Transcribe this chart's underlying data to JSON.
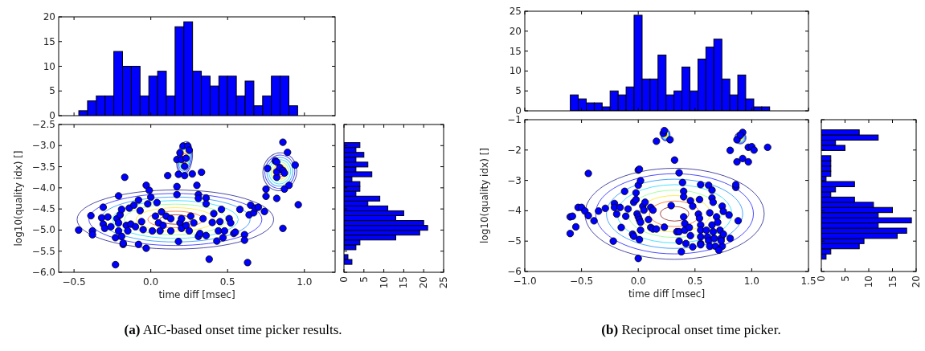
{
  "chart_data": [
    {
      "type": "histogram",
      "bins": [
        -0.469,
        -0.412,
        -0.355,
        -0.298,
        -0.241,
        -0.184,
        -0.127,
        -0.07,
        -0.013,
        0.044,
        0.101,
        0.158,
        0.215,
        0.272,
        0.329,
        0.386,
        0.443,
        0.5,
        0.557,
        0.614,
        0.671,
        0.728,
        0.785,
        0.842,
        0.899,
        0.956
      ],
      "values": [
        1,
        3,
        4,
        4,
        13,
        10,
        10,
        4,
        8,
        9,
        4,
        18,
        19,
        9,
        8,
        6,
        8,
        8,
        4,
        7,
        2,
        4,
        8,
        8,
        2
      ],
      "color": "#0000ff",
      "xlim": [
        -0.6,
        1.2
      ],
      "xticks": [
        -0.5,
        0,
        0.5,
        1
      ],
      "ylim": [
        0,
        20
      ],
      "yticks": [
        0,
        5,
        10,
        15,
        20
      ],
      "tick_labels": "y"
    },
    {
      "type": "scatter",
      "xlabel": "time diff [msec]",
      "ylabel": "log10(quality idx) []",
      "color": "#0000ff",
      "marker": "circle",
      "x": [
        -0.47,
        -0.39,
        -0.38,
        -0.38,
        -0.31,
        -0.32,
        -0.31,
        -0.3,
        -0.28,
        -0.26,
        -0.23,
        -0.23,
        -0.21,
        -0.22,
        -0.21,
        -0.21,
        -0.2,
        -0.19,
        -0.18,
        -0.18,
        -0.17,
        -0.19,
        -0.16,
        -0.15,
        -0.14,
        -0.11,
        -0.13,
        -0.1,
        -0.08,
        -0.08,
        -0.07,
        -0.06,
        -0.05,
        -0.03,
        -0.03,
        -0.02,
        -0.01,
        0.0,
        0.01,
        0.03,
        0.05,
        0.04,
        0.06,
        0.08,
        0.07,
        0.1,
        0.11,
        0.13,
        0.13,
        0.17,
        0.17,
        0.17,
        0.18,
        0.19,
        0.2,
        0.2,
        0.23,
        0.19,
        0.2,
        0.21,
        0.22,
        0.23,
        0.24,
        0.25,
        0.22,
        0.18,
        0.25,
        0.26,
        0.27,
        0.28,
        0.3,
        0.31,
        0.31,
        0.31,
        0.32,
        0.33,
        0.34,
        0.36,
        0.36,
        0.36,
        0.38,
        0.4,
        0.41,
        0.43,
        0.44,
        0.45,
        0.46,
        0.47,
        0.48,
        0.51,
        0.52,
        0.54,
        0.55,
        0.58,
        0.61,
        0.61,
        0.63,
        0.64,
        0.65,
        0.67,
        0.68,
        0.7,
        0.74,
        0.75,
        0.75,
        0.76,
        0.82,
        0.82,
        0.82,
        0.81,
        0.82,
        0.84,
        0.86,
        0.87,
        0.86,
        0.87,
        0.86,
        0.89,
        0.9,
        0.94,
        0.96
      ],
      "values": [
        -5.0,
        -4.66,
        -5.02,
        -5.11,
        -4.46,
        -4.71,
        -4.86,
        -4.96,
        -4.69,
        -4.92,
        -5.82,
        -5.18,
        -4.19,
        -4.73,
        -4.83,
        -5.02,
        -4.64,
        -4.51,
        -5.34,
        -5.31,
        -3.75,
        -5.15,
        -4.89,
        -5.02,
        -4.48,
        -4.41,
        -4.86,
        -4.92,
        -5.34,
        -4.29,
        -4.54,
        -4.8,
        -4.99,
        -5.43,
        -3.94,
        -4.38,
        -4.06,
        -4.22,
        -5.02,
        -4.67,
        -4.83,
        -4.35,
        -5.02,
        -4.89,
        -4.57,
        -4.67,
        -3.71,
        -5.02,
        -4.73,
        -4.16,
        -3.97,
        -3.33,
        -5.27,
        -4.83,
        -4.73,
        -4.96,
        -4.89,
        -3.17,
        -3.33,
        -3.01,
        -3.49,
        -3.3,
        -3.01,
        -3.11,
        -3.71,
        -3.68,
        -5.02,
        -4.67,
        -3.67,
        -4.83,
        -3.94,
        -4.16,
        -4.25,
        -5.15,
        -5.08,
        -3.63,
        -4.73,
        -4.24,
        -4.38,
        -5.13,
        -5.69,
        -4.82,
        -4.61,
        -5.26,
        -5.02,
        -4.8,
        -4.51,
        -5.18,
        -5.02,
        -4.73,
        -4.83,
        -5.08,
        -5.05,
        -4.51,
        -5.11,
        -5.24,
        -5.77,
        -4.64,
        -4.41,
        -4.59,
        -4.48,
        -4.46,
        -4.56,
        -4.2,
        -4.03,
        -3.54,
        -4.25,
        -3.75,
        -3.62,
        -3.36,
        -3.39,
        -3.52,
        -3.59,
        -3.65,
        -2.92,
        -4.03,
        -4.96,
        -3.16,
        -3.94,
        -3.46,
        -4.4
      ],
      "xlim": [
        -0.6,
        1.2
      ],
      "xticks": [
        {
          "value": -0.5,
          "label": "−0.5"
        },
        {
          "value": 0,
          "label": "0.0"
        },
        {
          "value": 0.5,
          "label": "0.5"
        },
        {
          "value": 1,
          "label": "1.0"
        }
      ],
      "ylim": [
        -6,
        -2.5
      ],
      "yticks": [
        {
          "value": -6,
          "label": "−6.0"
        },
        {
          "value": -5.5,
          "label": "−5.5"
        },
        {
          "value": -5,
          "label": "−5.0"
        },
        {
          "value": -4.5,
          "label": "−4.5"
        },
        {
          "value": -4,
          "label": "−4.0"
        },
        {
          "value": -3.5,
          "label": "−3.5"
        },
        {
          "value": -3,
          "label": "−3.0"
        },
        {
          "value": -2.5,
          "label": "−2.5"
        }
      ],
      "annotations": [
        "(a) AIC-based onset time picker results."
      ]
    },
    {
      "type": "histogram",
      "orientation": "horizontal",
      "bins": [
        -5.812,
        -5.697,
        -5.581,
        -5.466,
        -5.351,
        -5.235,
        -5.12,
        -5.005,
        -4.89,
        -4.774,
        -4.659,
        -4.544,
        -4.428,
        -4.313,
        -4.198,
        -4.082,
        -3.967,
        -3.852,
        -3.737,
        -3.621,
        -3.506,
        -3.391,
        -3.275,
        -3.16,
        -3.045,
        -2.929
      ],
      "values": [
        2,
        1,
        0,
        3,
        4,
        13,
        19,
        21,
        20,
        13,
        15,
        11,
        6,
        9,
        3,
        4,
        4,
        2,
        7,
        3,
        6,
        3,
        5,
        3,
        4
      ],
      "color": "#0000ff",
      "xlim": [
        0,
        25
      ],
      "xticks": [
        0,
        5,
        10,
        15,
        20,
        25
      ],
      "ylim": [
        -6,
        -2.5
      ],
      "yticks": [
        -6,
        -5.5,
        -5,
        -4.5,
        -4,
        -3.5,
        -3,
        -2.5
      ],
      "tick_labels": "x"
    },
    {
      "type": "histogram",
      "bins": [
        -0.599,
        -0.529,
        -0.458,
        -0.388,
        -0.318,
        -0.248,
        -0.177,
        -0.107,
        -0.037,
        0.034,
        0.104,
        0.174,
        0.245,
        0.315,
        0.385,
        0.455,
        0.526,
        0.596,
        0.666,
        0.737,
        0.807,
        0.877,
        0.947,
        1.018,
        1.088,
        1.158
      ],
      "values": [
        4,
        3,
        2,
        2,
        1,
        5,
        4,
        6,
        24,
        8,
        8,
        14,
        4,
        5,
        11,
        5,
        13,
        16,
        18,
        8,
        4,
        9,
        3,
        1,
        1
      ],
      "color": "#0000ff",
      "xlim": [
        -1,
        1.5
      ],
      "xticks": [
        -1,
        -0.5,
        0,
        0.5,
        1,
        1.5
      ],
      "ylim": [
        0,
        25
      ],
      "yticks": [
        0,
        5,
        10,
        15,
        20,
        25
      ],
      "tick_labels": "y"
    },
    {
      "type": "scatter",
      "xlabel": "time diff [msec]",
      "ylabel": "log10(quality idx) []",
      "color": "#0000ff",
      "marker": "circle",
      "x": [
        -0.6,
        -0.6,
        -0.58,
        -0.55,
        -0.53,
        -0.5,
        -0.47,
        -0.44,
        -0.44,
        -0.39,
        -0.35,
        -0.29,
        -0.22,
        -0.21,
        -0.21,
        -0.19,
        -0.16,
        -0.15,
        -0.12,
        -0.11,
        -0.09,
        -0.05,
        -0.04,
        -0.04,
        -0.02,
        -0.02,
        0.0,
        0.0,
        0.01,
        0.02,
        -0.01,
        0.0,
        0.01,
        0.02,
        0.02,
        0.01,
        0.0,
        0.04,
        0.05,
        0.06,
        0.09,
        0.11,
        0.13,
        0.16,
        0.11,
        0.13,
        0.16,
        0.22,
        0.23,
        0.28,
        0.23,
        0.29,
        0.32,
        0.34,
        0.36,
        0.36,
        0.38,
        0.36,
        0.39,
        0.4,
        0.4,
        0.4,
        0.41,
        0.41,
        0.42,
        0.46,
        0.48,
        0.48,
        0.45,
        0.46,
        0.53,
        0.54,
        0.55,
        0.55,
        0.55,
        0.55,
        0.55,
        0.54,
        0.55,
        0.6,
        0.61,
        0.62,
        0.63,
        0.62,
        0.65,
        0.65,
        0.66,
        0.63,
        0.65,
        0.66,
        0.67,
        0.68,
        0.69,
        0.7,
        0.72,
        0.73,
        0.74,
        0.71,
        0.74,
        0.75,
        0.73,
        0.75,
        0.8,
        0.81,
        0.81,
        0.86,
        0.86,
        0.87,
        0.88,
        0.87,
        0.92,
        0.9,
        0.92,
        0.97,
        0.97,
        1.0,
        1.02,
        1.14
      ],
      "values": [
        -4.2,
        -4.75,
        -4.18,
        -4.53,
        -3.89,
        -3.89,
        -4.01,
        -2.77,
        -4.16,
        -4.33,
        -4.01,
        -3.92,
        -5.0,
        -3.76,
        -3.89,
        -4.11,
        -3.89,
        -4.55,
        -3.36,
        -4.18,
        -3.94,
        -4.77,
        -4.84,
        -3.72,
        -3.63,
        -3.41,
        -3.16,
        -2.66,
        -2.63,
        -3.01,
        -4.1,
        -4.2,
        -4.29,
        -4.38,
        -4.64,
        -4.95,
        -5.57,
        -3.85,
        -3.98,
        -3.72,
        -4.29,
        -4.55,
        -4.6,
        -4.6,
        -3.89,
        -3.98,
        -1.71,
        -1.45,
        -1.36,
        -1.66,
        -4.54,
        -3.83,
        -2.33,
        -4.69,
        -4.69,
        -5.0,
        -5.35,
        -2.75,
        -3.07,
        -3.36,
        -3.54,
        -4.2,
        -4.42,
        -4.64,
        -5.08,
        -3.67,
        -3.85,
        -5.19,
        -4.55,
        -4.82,
        -4.11,
        -4.25,
        -4.47,
        -4.64,
        -4.86,
        -5.08,
        -5.12,
        -3.63,
        -3.14,
        -4.64,
        -4.86,
        -4.99,
        -5.17,
        -3.16,
        -3.32,
        -3.58,
        -3.72,
        -4.07,
        -4.47,
        -4.69,
        -4.91,
        -5.17,
        -4.2,
        -4.38,
        -4.64,
        -4.91,
        -5.17,
        -5.3,
        -3.85,
        -4.02,
        -4.99,
        -4.77,
        -4.14,
        -4.91,
        -2.01,
        -3.23,
        -3.14,
        -2.39,
        -4.33,
        -1.66,
        -1.42,
        -1.51,
        -2.28,
        -2.39,
        -1.91,
        -1.89,
        -2.0,
        -1.91
      ],
      "xlim": [
        -1,
        1.5
      ],
      "xticks": [
        {
          "value": -1,
          "label": "−1.0"
        },
        {
          "value": -0.5,
          "label": "−0.5"
        },
        {
          "value": 0,
          "label": "0.0"
        },
        {
          "value": 0.5,
          "label": "0.5"
        },
        {
          "value": 1,
          "label": "1.0"
        },
        {
          "value": 1.5,
          "label": "1.5"
        }
      ],
      "ylim": [
        -6,
        -1
      ],
      "yticks": [
        {
          "value": -6,
          "label": "−6"
        },
        {
          "value": -5,
          "label": "−5"
        },
        {
          "value": -4,
          "label": "−4"
        },
        {
          "value": -3,
          "label": "−3"
        },
        {
          "value": -2,
          "label": "−2"
        },
        {
          "value": -1,
          "label": "−1"
        }
      ],
      "annotations": [
        "(b) Reciprocal onset time picker."
      ]
    },
    {
      "type": "histogram",
      "orientation": "horizontal",
      "bins": [
        -5.594,
        -5.424,
        -5.253,
        -5.083,
        -4.912,
        -4.742,
        -4.572,
        -4.401,
        -4.231,
        -4.06,
        -3.89,
        -3.72,
        -3.549,
        -3.379,
        -3.208,
        -3.038,
        -2.868,
        -2.697,
        -2.527,
        -2.356,
        -2.186,
        -2.016,
        -1.845,
        -1.675,
        -1.504,
        -1.334
      ],
      "values": [
        1,
        2,
        8,
        9,
        16,
        18,
        12,
        19,
        12,
        15,
        11,
        7,
        2,
        3,
        7,
        1,
        2,
        2,
        2,
        2,
        0,
        5,
        3,
        12,
        8
      ],
      "color": "#0000ff",
      "xlim": [
        0,
        20
      ],
      "xticks": [
        0,
        5,
        10,
        15,
        20
      ],
      "ylim": [
        -6,
        -1
      ],
      "yticks": [
        -6,
        -5,
        -4,
        -3,
        -2,
        -1
      ],
      "tick_labels": "x"
    }
  ]
}
